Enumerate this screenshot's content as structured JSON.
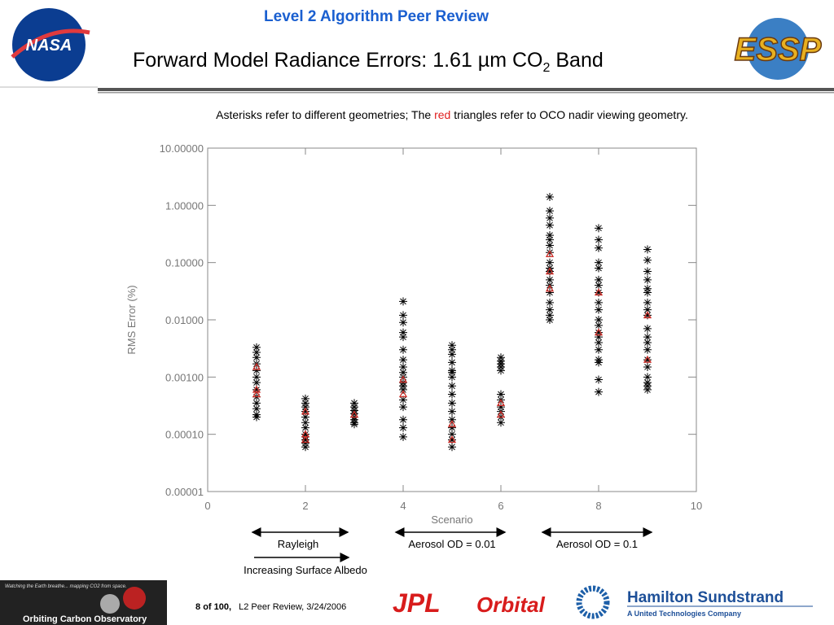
{
  "slide": {
    "header": "Level 2 Algorithm Peer Review",
    "title": {
      "main": "Forward Model Radiance Errors: 1.61 µm CO",
      "sub": "2",
      "end": "Band"
    },
    "caption": {
      "start": "Asterisks refer to different geometries; The",
      "highlight": "red",
      "end": "triangles refer to OCO nadir viewing geometry."
    },
    "annotations": [
      "Rayleigh",
      "Aerosol OD = 0.01",
      "Aerosol OD = 0.1",
      "Increasing Surface Albedo"
    ],
    "logos": {
      "nasa": "NASA",
      "essp": "ESSP",
      "jpl": "JPL",
      "orbital": "Orbital",
      "hamilton": "Hamilton Sundstrand",
      "hamilton_sub": "A United Technologies Company",
      "oco": "Orbiting Carbon Observatory",
      "oco_tag": "Watching the Earth breathe... mapping CO2 from space."
    },
    "footer": {
      "page": "8",
      "of": "of",
      "total": "100,",
      "note": "L2 Peer Review, 3/24/2006"
    }
  },
  "chart_data": {
    "type": "scatter",
    "xlabel": "Scenario",
    "ylabel": "RMS Error (%)",
    "xlim": [
      0,
      10
    ],
    "xticks": [
      0,
      2,
      4,
      6,
      8,
      10
    ],
    "ylim": [
      1e-05,
      10
    ],
    "ylog": true,
    "yticks": [
      {
        "value": 1e-05,
        "label": "0.00001"
      },
      {
        "value": 0.0001,
        "label": "0.00010"
      },
      {
        "value": 0.001,
        "label": "0.00100"
      },
      {
        "value": 0.01,
        "label": "0.01000"
      },
      {
        "value": 0.1,
        "label": "0.10000"
      },
      {
        "value": 1,
        "label": "1.00000"
      },
      {
        "value": 10,
        "label": "10.00000"
      }
    ],
    "series": [
      {
        "color": "#000000",
        "marker": "asterisk",
        "x": [
          1,
          1,
          1,
          1,
          1,
          1,
          1,
          1,
          1,
          1,
          1,
          1,
          1,
          2,
          2,
          2,
          2,
          2,
          2,
          2,
          2,
          2,
          2,
          2,
          2,
          3,
          3,
          3,
          3,
          3,
          3,
          3,
          3,
          4,
          4,
          4,
          4,
          4,
          4,
          4,
          4,
          4,
          4,
          4,
          4,
          4,
          4,
          4,
          4,
          4,
          4,
          5,
          5,
          5,
          5,
          5,
          5,
          5,
          5,
          5,
          5,
          5,
          5,
          5,
          5,
          5,
          5,
          6,
          6,
          6,
          6,
          6,
          6,
          6,
          6,
          6,
          6,
          6,
          7,
          7,
          7,
          7,
          7,
          7,
          7,
          7,
          7,
          7,
          7,
          7,
          7,
          7,
          7,
          7,
          7,
          7,
          8,
          8,
          8,
          8,
          8,
          8,
          8,
          8,
          8,
          8,
          8,
          8,
          8,
          8,
          8,
          8,
          8,
          8,
          8,
          8,
          9,
          9,
          9,
          9,
          9,
          9,
          9,
          9,
          9,
          9,
          9,
          9,
          9,
          9,
          9,
          9,
          9,
          9,
          9
        ],
        "values": [
          0.0033,
          0.0027,
          0.0022,
          0.0017,
          0.0013,
          0.001,
          0.0008,
          0.0006,
          0.00045,
          0.00035,
          0.00028,
          0.00022,
          0.0002,
          0.00042,
          0.00035,
          0.0003,
          0.00025,
          0.0002,
          0.00016,
          0.00013,
          0.0001,
          9e-05,
          8e-05,
          7e-05,
          6e-05,
          0.00035,
          0.0003,
          0.00026,
          0.00023,
          0.0002,
          0.00018,
          0.00016,
          0.00015,
          0.021,
          0.012,
          0.009,
          0.006,
          0.005,
          0.003,
          0.002,
          0.0015,
          0.0012,
          0.001,
          0.0008,
          0.0007,
          0.0006,
          0.0004,
          0.0003,
          0.00018,
          0.00013,
          9e-05,
          0.0036,
          0.003,
          0.0025,
          0.0018,
          0.0013,
          0.0012,
          0.001,
          0.0007,
          0.0005,
          0.00035,
          0.00025,
          0.00018,
          0.00013,
          0.0001,
          8e-05,
          6e-05,
          0.0022,
          0.0019,
          0.0017,
          0.0015,
          0.0013,
          0.0005,
          0.0004,
          0.0003,
          0.00025,
          0.0002,
          0.00016,
          1.4,
          0.8,
          0.6,
          0.45,
          0.3,
          0.25,
          0.2,
          0.15,
          0.1,
          0.08,
          0.07,
          0.05,
          0.04,
          0.03,
          0.02,
          0.015,
          0.012,
          0.01,
          0.4,
          0.25,
          0.18,
          0.1,
          0.08,
          0.05,
          0.04,
          0.03,
          0.02,
          0.015,
          0.01,
          0.008,
          0.006,
          0.005,
          0.004,
          0.003,
          0.002,
          0.0018,
          0.0009,
          0.00055,
          0.17,
          0.11,
          0.07,
          0.05,
          0.035,
          0.03,
          0.02,
          0.015,
          0.012,
          0.007,
          0.005,
          0.004,
          0.003,
          0.002,
          0.0015,
          0.001,
          0.0008,
          0.0007,
          0.0006
        ]
      },
      {
        "color": "#d0302a",
        "marker": "triangle",
        "x": [
          1,
          1,
          1,
          2,
          2,
          2,
          3,
          4,
          4,
          5,
          5,
          6,
          6,
          7,
          7,
          7,
          8,
          8,
          9,
          9
        ],
        "values": [
          0.0015,
          0.0006,
          0.0005,
          0.00025,
          0.0001,
          8e-05,
          0.00022,
          0.0009,
          0.0005,
          0.00015,
          8e-05,
          0.00035,
          0.00022,
          0.14,
          0.07,
          0.035,
          0.03,
          0.006,
          0.012,
          0.002
        ]
      }
    ]
  }
}
